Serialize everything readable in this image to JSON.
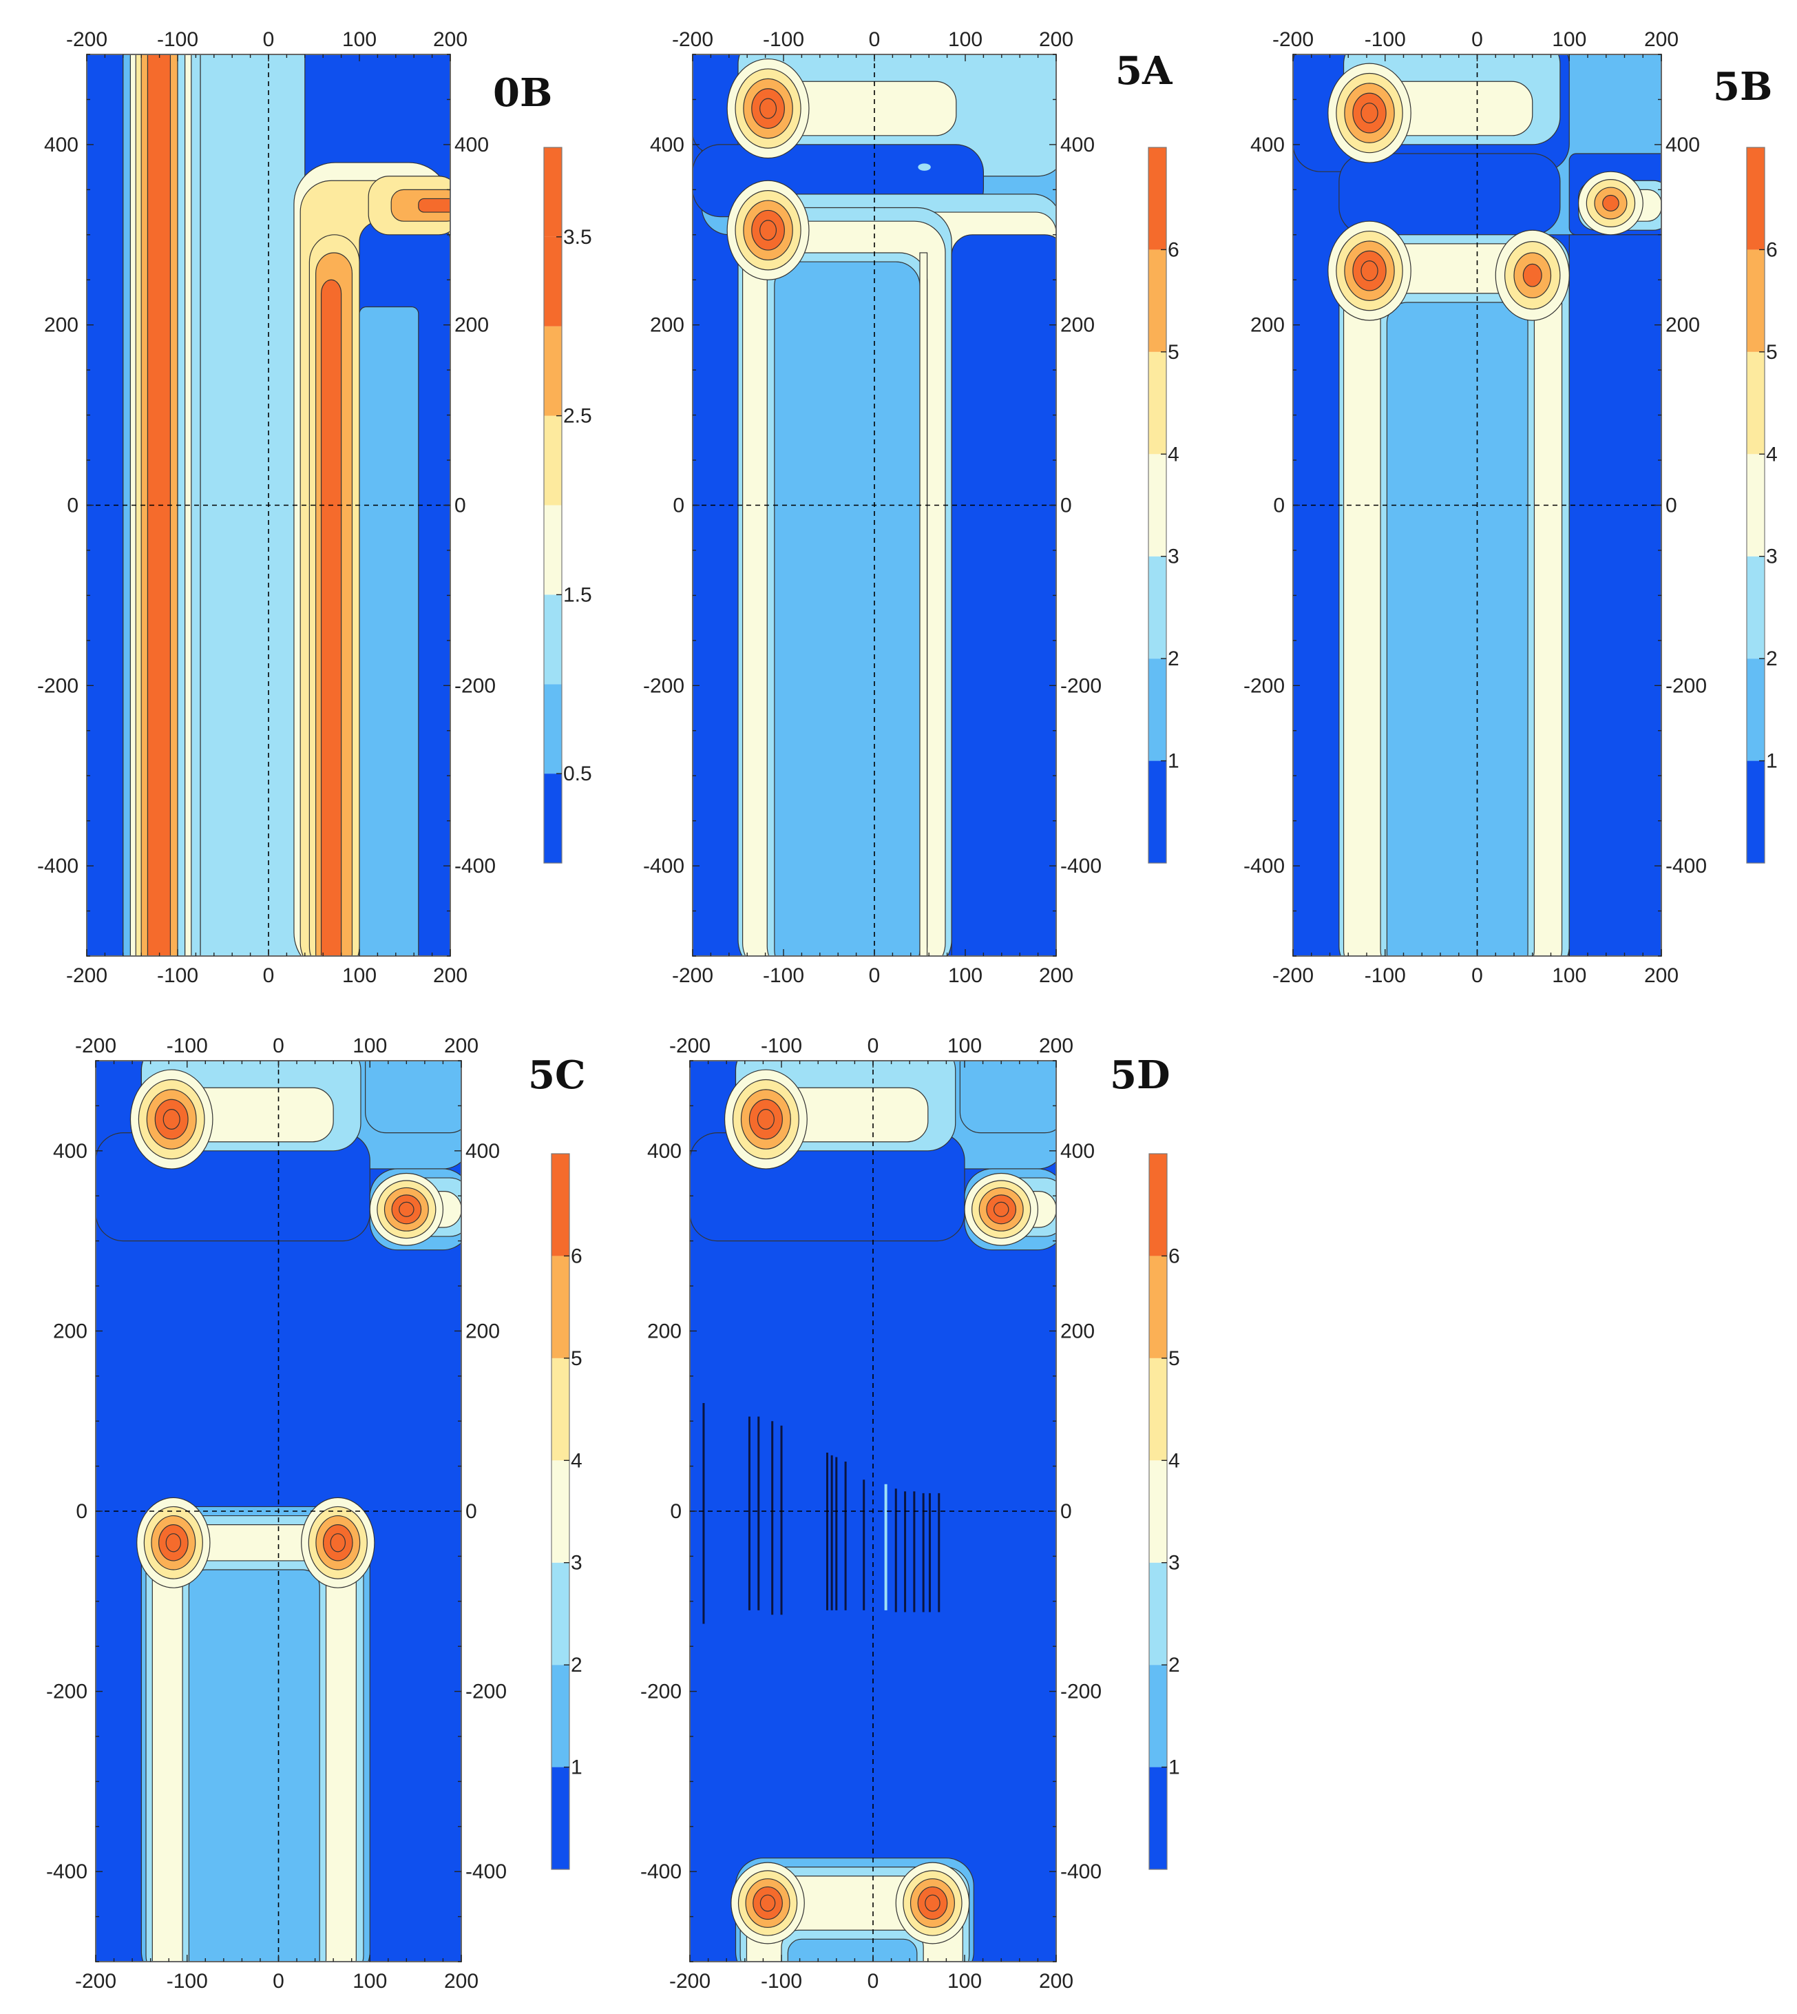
{
  "chart_data": [
    {
      "type": "contour",
      "title": "0B",
      "x_ticks": [
        "-200",
        "-100",
        "0",
        "100",
        "200"
      ],
      "y_ticks": [
        "-400",
        "-200",
        "0",
        "200",
        "400"
      ],
      "xlim": [
        -200,
        200
      ],
      "ylim": [
        -500,
        500
      ],
      "colorbar_ticks": [
        "0.5",
        "1.5",
        "2.5",
        "3.5"
      ],
      "levels": [
        0,
        0.5,
        1,
        1.5,
        2,
        2.5,
        3,
        3.5,
        4
      ],
      "features": {
        "vertical_ridges": [
          {
            "x": -120,
            "y_from": -500,
            "y_to": 500,
            "peak": 3.9
          },
          {
            "x": 65,
            "y_from": -500,
            "y_to": 250,
            "peak": 3.8
          }
        ],
        "horizontal_ridges": [
          {
            "y": 335,
            "x_from": 110,
            "x_to": 200,
            "peak": 3.7
          }
        ],
        "plateau": {
          "x_from": -75,
          "x_to": 40,
          "value": 1.3
        }
      }
    },
    {
      "type": "contour",
      "title": "5A",
      "x_ticks": [
        "-200",
        "-100",
        "0",
        "100",
        "200"
      ],
      "y_ticks": [
        "-400",
        "-200",
        "0",
        "200",
        "400"
      ],
      "xlim": [
        -200,
        200
      ],
      "ylim": [
        -500,
        500
      ],
      "colorbar_ticks": [
        "1",
        "2",
        "3",
        "4",
        "5",
        "6"
      ],
      "levels": [
        0,
        1,
        2,
        3,
        4,
        5,
        6,
        7
      ],
      "features": {
        "hotspots": [
          {
            "x": -115,
            "y": 440,
            "peak": 6.5
          },
          {
            "x": -115,
            "y": 305,
            "peak": 6.5
          }
        ],
        "vertical_bands": [
          {
            "x_from": -145,
            "x_to": 75,
            "y_from": -500,
            "y_to": 300,
            "edge": 3.5,
            "core": 1.8
          }
        ]
      }
    },
    {
      "type": "contour",
      "title": "5B",
      "x_ticks": [
        "-200",
        "-100",
        "0",
        "100",
        "200"
      ],
      "y_ticks": [
        "-400",
        "-200",
        "0",
        "200",
        "400"
      ],
      "xlim": [
        -200,
        200
      ],
      "ylim": [
        -500,
        500
      ],
      "colorbar_ticks": [
        "1",
        "2",
        "3",
        "4",
        "5",
        "6"
      ],
      "levels": [
        0,
        1,
        2,
        3,
        4,
        5,
        6,
        7
      ],
      "features": {
        "hotspots": [
          {
            "x": -115,
            "y": 435,
            "peak": 6.5
          },
          {
            "x": 145,
            "y": 335,
            "peak": 4.8
          },
          {
            "x": -115,
            "y": 260,
            "peak": 6.5
          },
          {
            "x": 60,
            "y": 255,
            "peak": 5.2
          }
        ]
      }
    },
    {
      "type": "contour",
      "title": "5C",
      "x_ticks": [
        "-200",
        "-100",
        "0",
        "100",
        "200"
      ],
      "y_ticks": [
        "-400",
        "-200",
        "0",
        "200",
        "400"
      ],
      "xlim": [
        -200,
        200
      ],
      "ylim": [
        -500,
        500
      ],
      "colorbar_ticks": [
        "1",
        "2",
        "3",
        "4",
        "5",
        "6"
      ],
      "levels": [
        0,
        1,
        2,
        3,
        4,
        5,
        6,
        7
      ],
      "features": {
        "hotspots": [
          {
            "x": -115,
            "y": 435,
            "peak": 6.5
          },
          {
            "x": 140,
            "y": 335,
            "peak": 6.3
          },
          {
            "x": -115,
            "y": -35,
            "peak": 6.5
          },
          {
            "x": 65,
            "y": -35,
            "peak": 6.5
          }
        ]
      }
    },
    {
      "type": "contour",
      "title": "5D",
      "x_ticks": [
        "-200",
        "-100",
        "0",
        "100",
        "200"
      ],
      "y_ticks": [
        "-400",
        "-200",
        "0",
        "200",
        "400"
      ],
      "xlim": [
        -200,
        200
      ],
      "ylim": [
        -500,
        500
      ],
      "colorbar_ticks": [
        "1",
        "2",
        "3",
        "4",
        "5",
        "6"
      ],
      "levels": [
        0,
        1,
        2,
        3,
        4,
        5,
        6,
        7
      ],
      "features": {
        "hotspots": [
          {
            "x": -115,
            "y": 435,
            "peak": 6.5
          },
          {
            "x": 140,
            "y": 335,
            "peak": 6.3
          },
          {
            "x": -115,
            "y": -435,
            "peak": 6.5
          },
          {
            "x": 65,
            "y": -435,
            "peak": 6.5
          }
        ]
      }
    }
  ],
  "colors": {
    "c0": "#0f50ee",
    "c1": "#63bdf5",
    "c2": "#9fe0f6",
    "c3": "#fafbdd",
    "c4": "#fdea9e",
    "c5": "#fbb055",
    "c6": "#f56b2c",
    "axis": "#222222",
    "contour_line": "#333333",
    "crosshair": "#000000"
  }
}
